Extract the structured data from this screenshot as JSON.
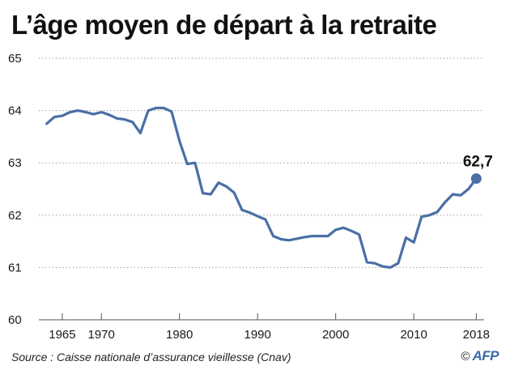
{
  "title": "L’âge moyen de départ à la retraite",
  "source": "Source : Caisse nationale d’assurance vieillesse (Cnav)",
  "credit": {
    "copyright_symbol": "©",
    "logo_text": "AFP"
  },
  "colors": {
    "line": "#4a6fa5",
    "grid": "#8a8a8a",
    "text": "#1a1a1a"
  },
  "chart_data": {
    "type": "line",
    "title": "L’âge moyen de départ à la retraite",
    "xlabel": "",
    "ylabel": "",
    "xlim": [
      1962,
      2019
    ],
    "ylim": [
      60,
      65
    ],
    "yticks": [
      60,
      61,
      62,
      63,
      64,
      65
    ],
    "xticks": [
      1965,
      1970,
      1980,
      1990,
      2000,
      2010,
      2018
    ],
    "grid": "horizontal dotted",
    "series": [
      {
        "x": [
          1963,
          1964,
          1965,
          1966,
          1967,
          1968,
          1969,
          1970,
          1971,
          1972,
          1973,
          1974,
          1975,
          1976,
          1977,
          1978,
          1979,
          1980,
          1981,
          1982,
          1983,
          1984,
          1985,
          1986,
          1987,
          1988,
          1989,
          1990,
          1991,
          1992,
          1993,
          1994,
          1995,
          1996,
          1997,
          1998,
          1999,
          2000,
          2001,
          2002,
          2003,
          2004,
          2005,
          2006,
          2007,
          2008,
          2009,
          2010,
          2011,
          2012,
          2013,
          2014,
          2015,
          2016,
          2017,
          2018
        ],
        "values": [
          63.75,
          63.88,
          63.9,
          63.97,
          64.0,
          63.97,
          63.93,
          63.97,
          63.92,
          63.85,
          63.83,
          63.78,
          63.57,
          64.0,
          64.05,
          64.05,
          63.98,
          63.42,
          62.98,
          63.0,
          62.42,
          62.4,
          62.62,
          62.55,
          62.43,
          62.1,
          62.05,
          61.98,
          61.92,
          61.6,
          61.54,
          61.52,
          61.55,
          61.58,
          61.6,
          61.6,
          61.6,
          61.72,
          61.76,
          61.7,
          61.63,
          61.1,
          61.08,
          61.02,
          61.0,
          61.08,
          61.57,
          61.48,
          61.97,
          62.0,
          62.06,
          62.25,
          62.4,
          62.38,
          62.5,
          62.7
        ]
      }
    ],
    "annotations": [
      {
        "x": 2018,
        "y": 62.7,
        "label": "62,7"
      }
    ]
  }
}
